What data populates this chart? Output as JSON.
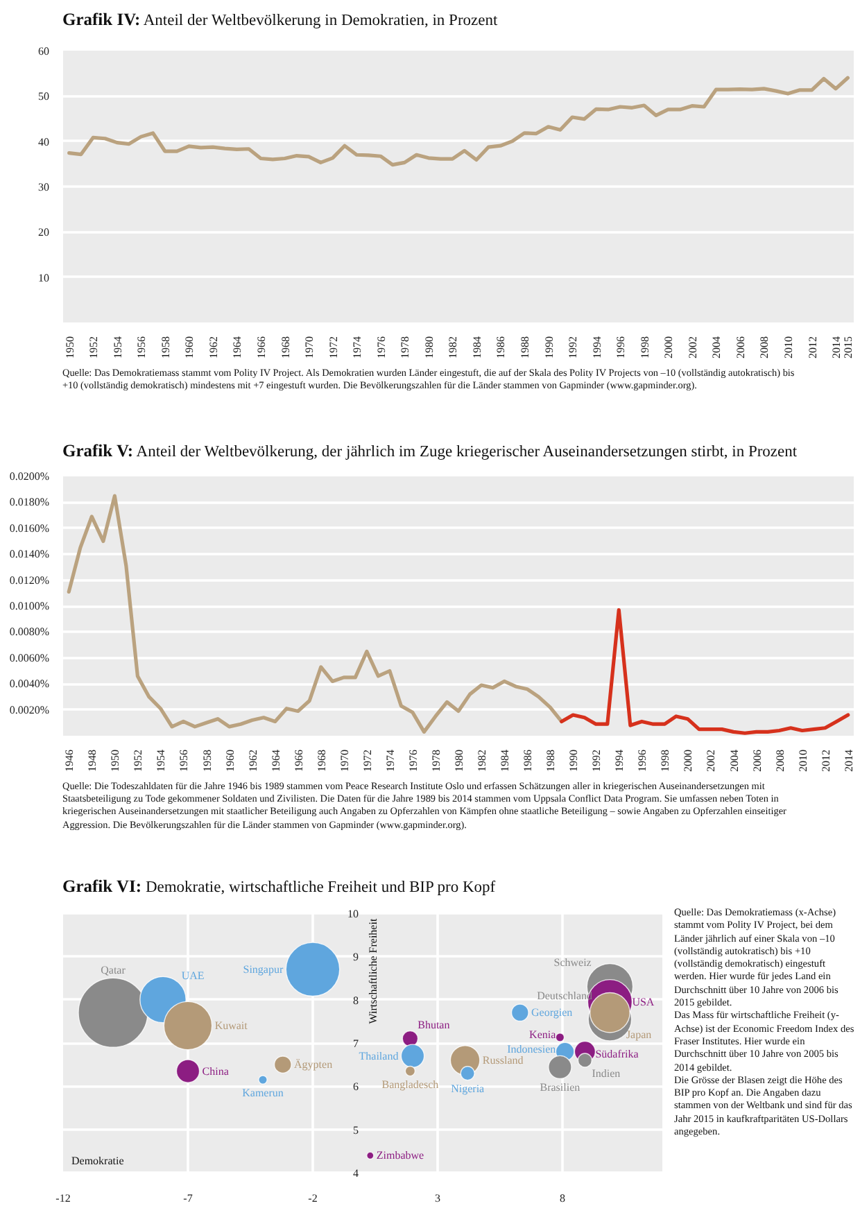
{
  "chart_data": [
    {
      "type": "line",
      "title": "Grafik IV: Anteil der Weltbevölkerung in Demokratien, in Prozent",
      "x": [
        1950,
        1951,
        1952,
        1953,
        1954,
        1955,
        1956,
        1957,
        1958,
        1959,
        1960,
        1961,
        1962,
        1963,
        1964,
        1965,
        1966,
        1967,
        1968,
        1969,
        1970,
        1971,
        1972,
        1973,
        1974,
        1975,
        1976,
        1977,
        1978,
        1979,
        1980,
        1981,
        1982,
        1983,
        1984,
        1985,
        1986,
        1987,
        1988,
        1989,
        1990,
        1991,
        1992,
        1993,
        1994,
        1995,
        1996,
        1997,
        1998,
        1999,
        2000,
        2001,
        2002,
        2003,
        2004,
        2005,
        2006,
        2007,
        2008,
        2009,
        2010,
        2011,
        2012,
        2013,
        2014,
        2015
      ],
      "series": [
        {
          "color": "#baa27f",
          "values": [
            37.4,
            37.1,
            40.8,
            40.6,
            39.7,
            39.4,
            41.0,
            41.8,
            37.8,
            37.8,
            38.9,
            38.6,
            38.7,
            38.4,
            38.2,
            38.3,
            36.2,
            36.0,
            36.2,
            36.8,
            36.6,
            35.3,
            36.3,
            39.0,
            37.0,
            36.9,
            36.7,
            34.8,
            35.3,
            37.0,
            36.3,
            36.1,
            36.1,
            37.9,
            35.9,
            38.7,
            39.0,
            40.0,
            41.8,
            41.7,
            43.2,
            42.5,
            45.3,
            44.9,
            47.1,
            47.0,
            47.6,
            47.4,
            47.9,
            45.7,
            47.0,
            47.0,
            47.8,
            47.6,
            51.4,
            51.4,
            51.5,
            51.4,
            51.6,
            51.1,
            50.5,
            51.3,
            51.3,
            53.8,
            51.6,
            54.0
          ]
        }
      ],
      "xlim": [
        1949.5,
        2015.5
      ],
      "xticks": [
        1950,
        1952,
        1954,
        1956,
        1958,
        1960,
        1962,
        1964,
        1966,
        1968,
        1970,
        1972,
        1974,
        1976,
        1978,
        1980,
        1982,
        1984,
        1986,
        1988,
        1990,
        1992,
        1994,
        1996,
        1998,
        2000,
        2002,
        2004,
        2006,
        2008,
        2010,
        2012,
        2014,
        2015
      ],
      "ylim": [
        0,
        60
      ],
      "yticks": [
        10,
        20,
        30,
        40,
        50,
        60
      ],
      "grid": "y",
      "annotations": [
        "Quelle: Das Demokratiemass stammt vom Polity IV Project. Als Demokratien wurden Länder eingestuft, die auf der Skala des Polity IV Projects von –10 (vollständig autokratisch) bis +10 (vollständig demokratisch) mindestens mit +7 eingestuft wurden. Die Bevölkerungszahlen für die Länder stammen von Gapminder (www.gapminder.org)."
      ]
    },
    {
      "type": "line",
      "title": "Grafik V: Anteil der Weltbevölkerung, der jährlich im Zuge kriegerischer Auseinandersetzungen stirbt, in Prozent",
      "series": [
        {
          "color": "#baa27f",
          "x": [
            1946,
            1947,
            1948,
            1949,
            1950,
            1951,
            1952,
            1953,
            1954,
            1955,
            1956,
            1957,
            1958,
            1959,
            1960,
            1961,
            1962,
            1963,
            1964,
            1965,
            1966,
            1967,
            1968,
            1969,
            1970,
            1971,
            1972,
            1973,
            1974,
            1975,
            1976,
            1977,
            1978,
            1979,
            1980,
            1981,
            1982,
            1983,
            1984,
            1985,
            1986,
            1987,
            1988,
            1989
          ],
          "values": [
            0.0111,
            0.0145,
            0.0169,
            0.015,
            0.0185,
            0.0131,
            0.0046,
            0.003,
            0.0021,
            0.0007,
            0.0011,
            0.0007,
            0.001,
            0.0013,
            0.0007,
            0.0009,
            0.0012,
            0.0014,
            0.0011,
            0.0021,
            0.0019,
            0.0027,
            0.0053,
            0.0042,
            0.0045,
            0.0045,
            0.0065,
            0.0046,
            0.005,
            0.0023,
            0.0018,
            0.0003,
            0.0015,
            0.0026,
            0.0019,
            0.0032,
            0.0039,
            0.0037,
            0.0042,
            0.0038,
            0.0036,
            0.003,
            0.0022,
            0.0011
          ]
        },
        {
          "color": "#d6311c",
          "x": [
            1989,
            1990,
            1991,
            1992,
            1993,
            1994,
            1995,
            1996,
            1997,
            1998,
            1999,
            2000,
            2001,
            2002,
            2003,
            2004,
            2005,
            2006,
            2007,
            2008,
            2009,
            2010,
            2011,
            2012,
            2013,
            2014
          ],
          "values": [
            0.0011,
            0.0016,
            0.0014,
            0.0009,
            0.0009,
            0.0097,
            0.0008,
            0.0011,
            0.0009,
            0.0009,
            0.0015,
            0.0013,
            0.0005,
            0.0005,
            0.0005,
            0.0003,
            0.0002,
            0.0003,
            0.0003,
            0.0004,
            0.0006,
            0.0004,
            0.0005,
            0.0006,
            0.0011,
            0.0016
          ]
        }
      ],
      "xlim": [
        1945.5,
        2014.5
      ],
      "xticks": [
        1946,
        1948,
        1950,
        1952,
        1954,
        1956,
        1958,
        1960,
        1962,
        1964,
        1966,
        1968,
        1970,
        1972,
        1974,
        1976,
        1978,
        1980,
        1982,
        1984,
        1986,
        1988,
        1990,
        1992,
        1994,
        1996,
        1998,
        2000,
        2002,
        2004,
        2006,
        2008,
        2010,
        2012,
        2014
      ],
      "ylim": [
        0,
        0.02
      ],
      "yticks": [
        {
          "value": 0.002,
          "label": "0.0020%"
        },
        {
          "value": 0.004,
          "label": "0.0040%"
        },
        {
          "value": 0.006,
          "label": "0.0060%"
        },
        {
          "value": 0.008,
          "label": "0.0080%"
        },
        {
          "value": 0.01,
          "label": "0.0100%"
        },
        {
          "value": 0.012,
          "label": "0.0120%"
        },
        {
          "value": 0.014,
          "label": "0.0140%"
        },
        {
          "value": 0.016,
          "label": "0.0160%"
        },
        {
          "value": 0.018,
          "label": "0.0180%"
        },
        {
          "value": 0.02,
          "label": "0.0200%"
        }
      ],
      "grid": "y",
      "annotations": [
        "Quelle: Die Todeszahldaten für die Jahre 1946 bis 1989 stammen vom Peace Research Institute Oslo und erfassen Schätzungen aller in kriegerischen Auseinandersetzungen mit Staatsbeteiligung zu Tode gekommener Soldaten und Zivilisten. Die Daten für die Jahre 1989 bis 2014 stammen vom Uppsala Conflict Data Program. Sie umfassen neben Toten in kriegerischen Auseinandersetzungen mit staatlicher Beteiligung auch Angaben zu Opferzahlen von Kämpfen ohne staatliche Beteiligung – sowie Angaben zu Opferzahlen einseitiger Aggression. Die Bevölkerungszahlen für die Länder stammen von Gapminder (www.gapminder.org)."
      ]
    },
    {
      "type": "bubble",
      "title": "Grafik VI: Demokratie, wirtschaftliche Freiheit und BIP pro Kopf",
      "xlabel": "Demokratie",
      "ylabel": "Wirtschaftliche Freiheit",
      "series": [
        {
          "name": "Qatar",
          "color": "#8a8a8a",
          "x": [
            -10
          ],
          "values": [
            7.7
          ],
          "sizes": [
            1
          ]
        },
        {
          "name": "UAE",
          "color": "#5fa6de",
          "x": [
            -8
          ],
          "values": [
            8.0
          ],
          "sizes": [
            0.44
          ]
        },
        {
          "name": "Kuwait",
          "color": "#b49a78",
          "x": [
            -7
          ],
          "values": [
            7.4
          ],
          "sizes": [
            0.48
          ]
        },
        {
          "name": "Singapur",
          "color": "#5fa6de",
          "x": [
            -2
          ],
          "values": [
            8.7
          ],
          "sizes": [
            0.6
          ]
        },
        {
          "name": "China",
          "color": "#8c1d82",
          "x": [
            -7
          ],
          "values": [
            6.35
          ],
          "sizes": [
            0.11
          ]
        },
        {
          "name": "Ägypten",
          "color": "#b49a78",
          "x": [
            -3.2
          ],
          "values": [
            6.5
          ],
          "sizes": [
            0.06
          ]
        },
        {
          "name": "Kamerun",
          "color": "#5fa6de",
          "x": [
            -4
          ],
          "values": [
            6.15
          ],
          "sizes": [
            0.015
          ]
        },
        {
          "name": "Zimbabwe",
          "color": "#8c1d82",
          "x": [
            0.3
          ],
          "values": [
            4.4
          ],
          "sizes": [
            0.01
          ]
        },
        {
          "name": "Bhutan",
          "color": "#8c1d82",
          "x": [
            1.9
          ],
          "values": [
            7.1
          ],
          "sizes": [
            0.05
          ]
        },
        {
          "name": "Thailand",
          "color": "#5fa6de",
          "x": [
            2.0
          ],
          "values": [
            6.7
          ],
          "sizes": [
            0.11
          ]
        },
        {
          "name": "Bangladesch",
          "color": "#b49a78",
          "x": [
            1.9
          ],
          "values": [
            6.35
          ],
          "sizes": [
            0.02
          ]
        },
        {
          "name": "Russland",
          "color": "#b49a78",
          "x": [
            4.1
          ],
          "values": [
            6.6
          ],
          "sizes": [
            0.18
          ]
        },
        {
          "name": "Nigeria",
          "color": "#5fa6de",
          "x": [
            4.2
          ],
          "values": [
            6.3
          ],
          "sizes": [
            0.04
          ]
        },
        {
          "name": "Georgien",
          "color": "#5fa6de",
          "x": [
            6.3
          ],
          "values": [
            7.7
          ],
          "sizes": [
            0.06
          ]
        },
        {
          "name": "Kenia",
          "color": "#8c1d82",
          "x": [
            7.9
          ],
          "values": [
            7.13
          ],
          "sizes": [
            0.015
          ]
        },
        {
          "name": "Indonesien",
          "color": "#5fa6de",
          "x": [
            8.1
          ],
          "values": [
            6.8
          ],
          "sizes": [
            0.07
          ]
        },
        {
          "name": "Brasilien",
          "color": "#8a8a8a",
          "x": [
            7.9
          ],
          "values": [
            6.44
          ],
          "sizes": [
            0.11
          ]
        },
        {
          "name": "Südafrika",
          "color": "#8c1d82",
          "x": [
            8.9
          ],
          "values": [
            6.8
          ],
          "sizes": [
            0.09
          ]
        },
        {
          "name": "Indien",
          "color": "#8a8a8a",
          "x": [
            8.9
          ],
          "values": [
            6.6
          ],
          "sizes": [
            0.04
          ]
        },
        {
          "name": "Schweiz",
          "color": "#8a8a8a",
          "x": [
            9.9
          ],
          "values": [
            8.3
          ],
          "sizes": [
            0.44
          ]
        },
        {
          "name": "Deutschland",
          "color": "#8a8a8a",
          "x": [
            9.9
          ],
          "values": [
            7.55
          ],
          "sizes": [
            0.39
          ]
        },
        {
          "name": "USA",
          "color": "#8c1d82",
          "x": [
            9.9
          ],
          "values": [
            7.95
          ],
          "sizes": [
            0.41
          ]
        },
        {
          "name": "Japan",
          "color": "#b49a78",
          "x": [
            9.9
          ],
          "values": [
            7.7
          ],
          "sizes": [
            0.33
          ]
        }
      ],
      "xlim": [
        -12,
        12
      ],
      "xticks": [
        -12,
        -7,
        -2,
        3,
        8
      ],
      "ylim": [
        4,
        10
      ],
      "yticks": [
        4,
        5,
        6,
        7,
        8,
        9,
        10
      ],
      "grid": true,
      "annotations": [
        "Quelle: Das Demokratiemass (x-Achse) stammt vom Polity IV Project, bei dem Länder jährlich auf einer Skala von –10 (vollständig autokratisch) bis +10 (vollständig demokratisch) eingestuft werden. Hier wurde für jedes Land ein Durchschnitt über 10 Jahre von 2006 bis 2015 gebildet.",
        "Das Mass für wirtschaftliche Freiheit (y-Achse) ist der Economic Freedom Index des Fraser Institutes. Hier wurde ein Durchschnitt über 10 Jahre von 2005 bis 2014 gebildet.",
        "Die Grösse der Blasen zeigt die Höhe des BIP pro Kopf an. Die Angaben dazu stammen von der Weltbank und sind für das Jahr 2015 in kaufkraftparitäten US-Dollars angegeben."
      ]
    }
  ]
}
